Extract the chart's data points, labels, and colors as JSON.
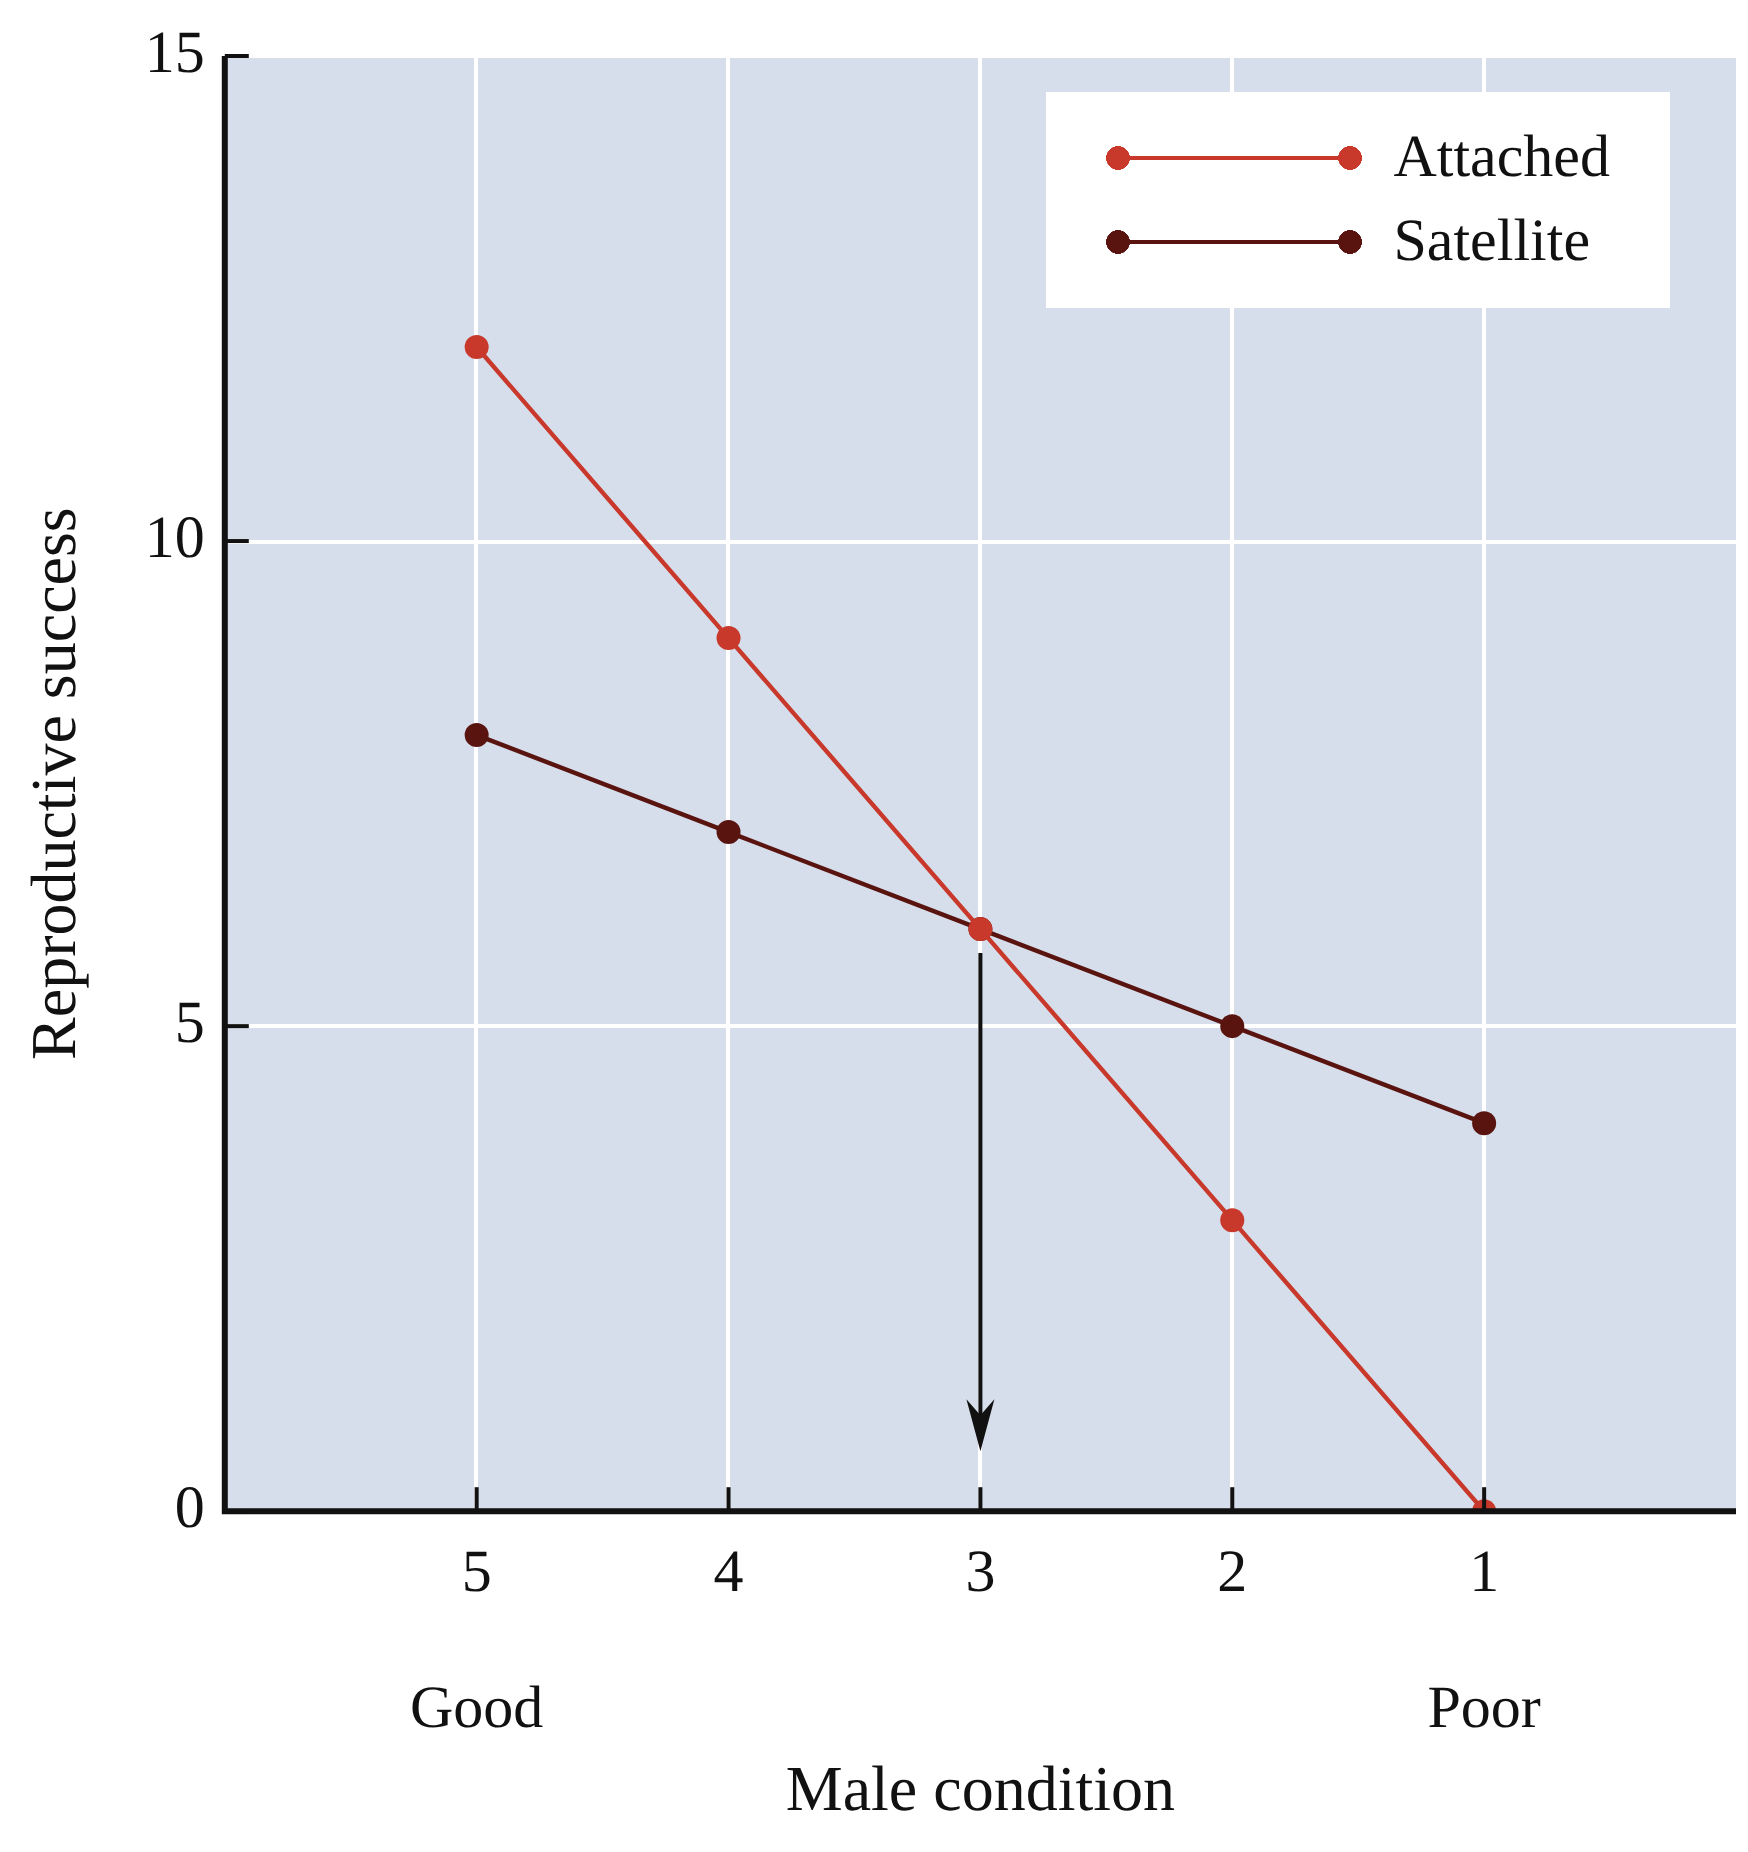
{
  "chart_data": {
    "type": "line",
    "xlabel": "Male condition",
    "ylabel": "Reproductive success",
    "x": [
      5,
      4,
      3,
      2,
      1
    ],
    "xlim": [
      6,
      0
    ],
    "xticks": [
      5,
      4,
      3,
      2,
      1
    ],
    "ylim": [
      0,
      15
    ],
    "yticks": [
      0,
      5,
      10,
      15
    ],
    "series": [
      {
        "name": "Attached",
        "color": "#c8392b",
        "values": [
          12,
          9,
          6,
          3,
          0
        ]
      },
      {
        "name": "Satellite",
        "color": "#5a1410",
        "values": [
          8,
          7,
          6,
          5,
          4
        ]
      }
    ],
    "annotations": [
      "Good",
      "Poor"
    ],
    "grid": true,
    "legend": "top right",
    "marker": "circle",
    "line_style": "solid"
  }
}
